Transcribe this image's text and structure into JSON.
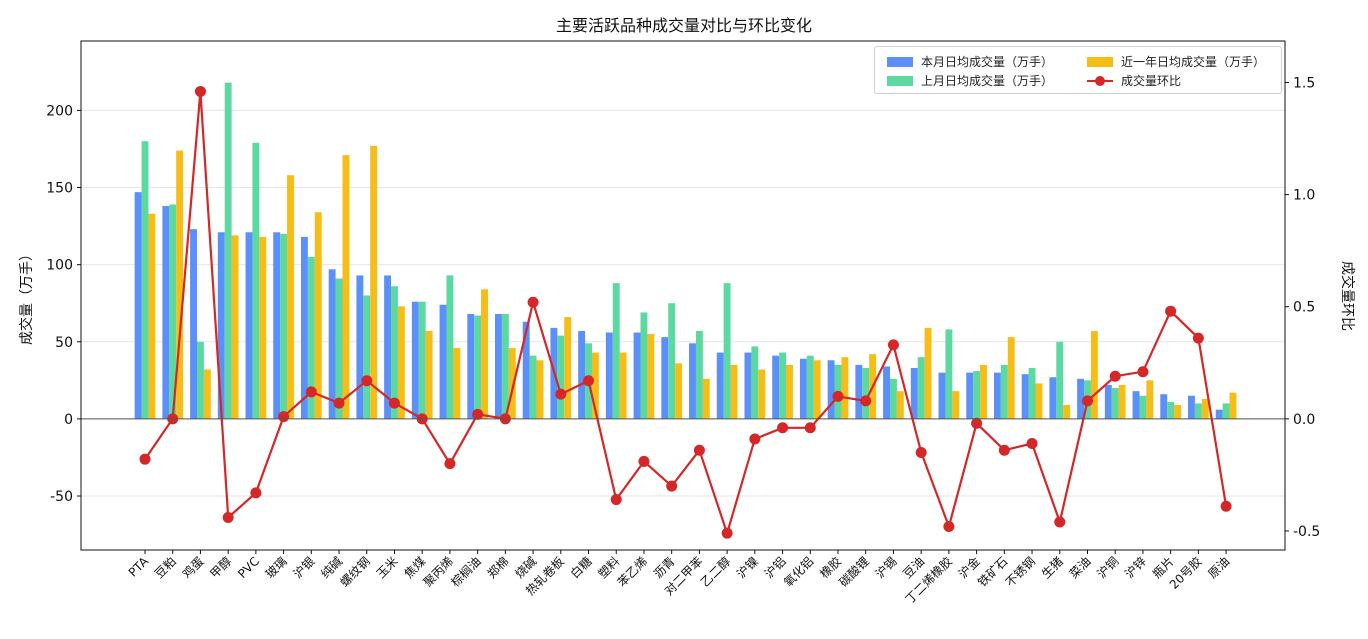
{
  "chart_data": {
    "type": "bar",
    "title": "主要活跃品种成交量对比与环比变化",
    "ylabel": "成交量（万手）",
    "ylabel_right": "成交量环比",
    "ylim": [
      -85,
      245
    ],
    "ylim_right": [
      -0.585,
      1.685
    ],
    "yticks": [
      -50,
      0,
      50,
      100,
      150,
      200
    ],
    "yticks_right": [
      -0.5,
      0.0,
      0.5,
      1.0,
      1.5
    ],
    "grid": true,
    "legend_position": "top-right",
    "categories": [
      "PTA",
      "豆粕",
      "鸡蛋",
      "甲醇",
      "PVC",
      "玻璃",
      "沪银",
      "纯碱",
      "螺纹钢",
      "玉米",
      "焦煤",
      "聚丙烯",
      "棕榈油",
      "郑棉",
      "烧碱",
      "热轧卷板",
      "白糖",
      "塑料",
      "苯乙烯",
      "沥青",
      "对二甲苯",
      "乙二醇",
      "沪镍",
      "沪铝",
      "氧化铝",
      "橡胶",
      "碳酸锂",
      "沪锡",
      "豆油",
      "丁二烯橡胶",
      "沪金",
      "铁矿石",
      "不锈钢",
      "生猪",
      "菜油",
      "沪铜",
      "沪锌",
      "瓶片",
      "20号胶",
      "原油"
    ],
    "series": [
      {
        "name": "本月日均成交量（万手）",
        "color": "#5b8ff9",
        "values": [
          147,
          138,
          123,
          121,
          121,
          121,
          118,
          97,
          93,
          93,
          76,
          74,
          68,
          68,
          63,
          59,
          57,
          56,
          56,
          53,
          49,
          43,
          43,
          41,
          39,
          38,
          35,
          34,
          33,
          30,
          30,
          30,
          29,
          27,
          26,
          22,
          18,
          16,
          15,
          6
        ]
      },
      {
        "name": "上月日均成交量（万手）",
        "color": "#5bd9a0",
        "values": [
          180,
          139,
          50,
          218,
          179,
          120,
          105,
          91,
          80,
          86,
          76,
          93,
          67,
          68,
          41,
          54,
          49,
          88,
          69,
          75,
          57,
          88,
          47,
          43,
          41,
          35,
          33,
          26,
          40,
          58,
          31,
          35,
          33,
          50,
          25,
          20,
          15,
          11,
          10,
          10
        ]
      },
      {
        "name": "近一年日均成交量（万手）",
        "color": "#f6bd16",
        "values": [
          133,
          174,
          32,
          119,
          118,
          158,
          134,
          171,
          177,
          73,
          57,
          46,
          84,
          46,
          38,
          66,
          43,
          43,
          55,
          36,
          26,
          35,
          32,
          35,
          38,
          40,
          42,
          18,
          59,
          18,
          35,
          53,
          23,
          9,
          57,
          22,
          25,
          9,
          13,
          17
        ]
      },
      {
        "name": "成交量环比",
        "color": "#d62728",
        "axis": "right",
        "type": "line",
        "values": [
          -0.18,
          0.0,
          1.46,
          -0.44,
          -0.33,
          0.01,
          0.12,
          0.07,
          0.17,
          0.07,
          0.0,
          -0.2,
          0.02,
          0.0,
          0.52,
          0.11,
          0.17,
          -0.36,
          -0.19,
          -0.3,
          -0.14,
          -0.51,
          -0.09,
          -0.04,
          -0.04,
          0.1,
          0.08,
          0.33,
          -0.15,
          -0.48,
          -0.02,
          -0.14,
          -0.11,
          -0.46,
          0.08,
          0.19,
          0.21,
          0.48,
          0.36,
          -0.39
        ]
      }
    ]
  }
}
